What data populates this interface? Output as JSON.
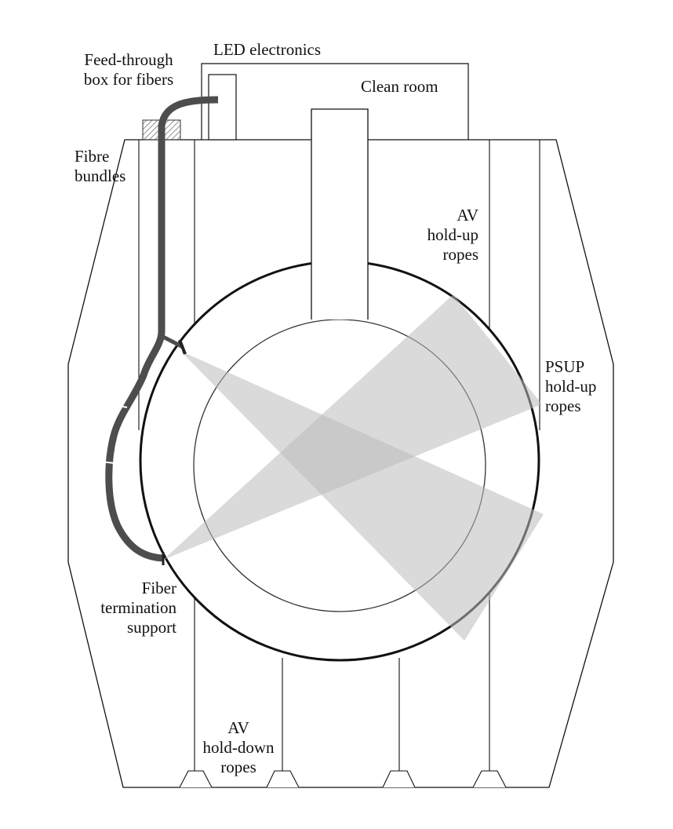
{
  "colors": {
    "line": "#111111",
    "fiber": "#4d4d4d",
    "beam": "#c8c8c8",
    "hatch": "#777777"
  },
  "labels": {
    "led_electronics": "LED electronics",
    "clean_room": "Clean room",
    "feedthrough_line1": "Feed-through",
    "feedthrough_line2": "box for fibers",
    "fibre_bundles_line1": "Fibre",
    "fibre_bundles_line2": "bundles",
    "av_holdup_line1": "AV",
    "av_holdup_line2": "hold-up",
    "av_holdup_line3": "ropes",
    "psup_line1": "PSUP",
    "psup_line2": "hold-up",
    "psup_line3": "ropes",
    "fiber_term_line1": "Fiber",
    "fiber_term_line2": "termination",
    "fiber_term_line3": "support",
    "av_holddown_line1": "AV",
    "av_holddown_line2": "hold-down",
    "av_holddown_line3": "ropes"
  }
}
